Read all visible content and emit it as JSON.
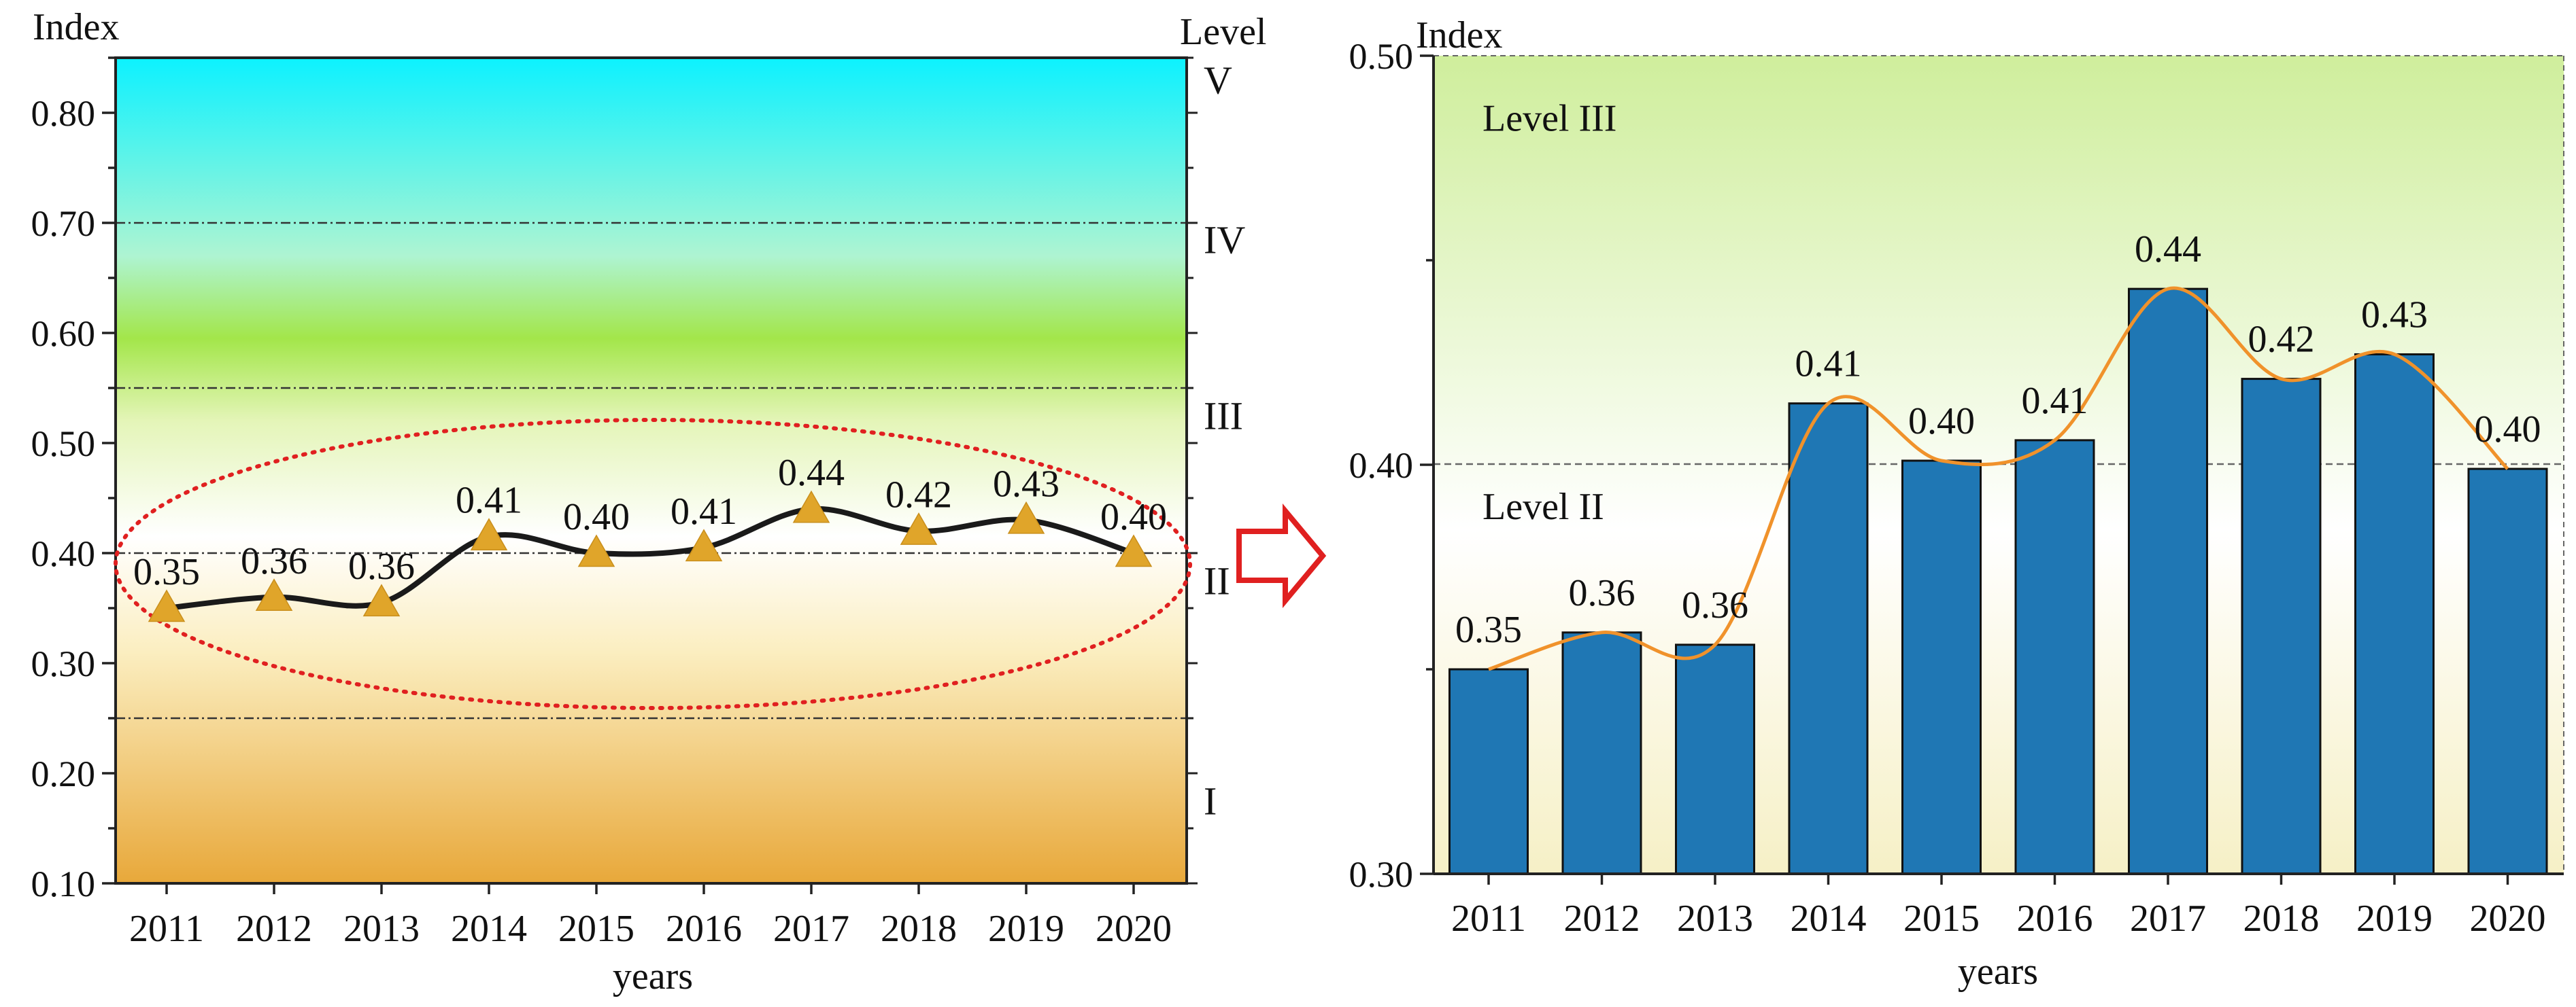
{
  "chart_data": [
    {
      "type": "line",
      "title": "",
      "xlabel": "years",
      "ylabel": "Index",
      "right_axis_label": "Level",
      "x": [
        "2011",
        "2012",
        "2013",
        "2014",
        "2015",
        "2016",
        "2017",
        "2018",
        "2019",
        "2020"
      ],
      "values": [
        0.35,
        0.36,
        0.355,
        0.415,
        0.4,
        0.405,
        0.44,
        0.42,
        0.43,
        0.4
      ],
      "value_labels": [
        "0.35",
        "0.36",
        "0.36",
        "0.41",
        "0.40",
        "0.41",
        "0.44",
        "0.42",
        "0.43",
        "0.40"
      ],
      "ylim": [
        0.1,
        0.85
      ],
      "yticks": [
        "0.10",
        "0.20",
        "0.30",
        "0.40",
        "0.50",
        "0.60",
        "0.70",
        "0.80"
      ],
      "level_thresholds": [
        0.25,
        0.4,
        0.55,
        0.7,
        0.85
      ],
      "levels": [
        {
          "label": "I",
          "y": 0.175
        },
        {
          "label": "II",
          "y": 0.375
        },
        {
          "label": "III",
          "y": 0.525
        },
        {
          "label": "IV",
          "y": 0.685
        },
        {
          "label": "V",
          "y": 0.83
        }
      ],
      "marker": "triangle",
      "annotation": "dotted ellipse highlighting the data"
    },
    {
      "type": "bar",
      "title": "",
      "xlabel": "years",
      "ylabel": "Index",
      "categories": [
        "2011",
        "2012",
        "2013",
        "2014",
        "2015",
        "2016",
        "2017",
        "2018",
        "2019",
        "2020"
      ],
      "values": [
        0.35,
        0.359,
        0.356,
        0.415,
        0.401,
        0.406,
        0.443,
        0.421,
        0.427,
        0.399
      ],
      "value_labels": [
        "0.35",
        "0.36",
        "0.36",
        "0.41",
        "0.40",
        "0.41",
        "0.44",
        "0.42",
        "0.43",
        "0.40"
      ],
      "ylim": [
        0.3,
        0.5
      ],
      "yticks": [
        "0.30",
        "0.40",
        "0.50"
      ],
      "reference_line": 0.4,
      "region_labels": [
        {
          "label": "Level III",
          "y": 0.485
        },
        {
          "label": "Level II",
          "y": 0.39
        }
      ]
    }
  ],
  "colors": {
    "bar": "#1f77b4",
    "smooth_line_right": "#f0922b",
    "line_left": "#1a1a1a",
    "marker": "#e0a52a",
    "ellipse": "#e02020",
    "arrow": "#e02020"
  }
}
